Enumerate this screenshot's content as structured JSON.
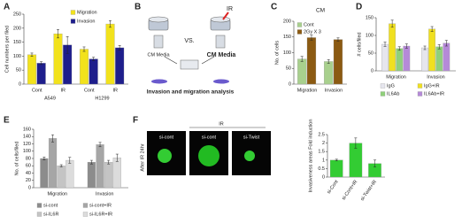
{
  "panel_labels": [
    "A",
    "B",
    "C",
    "D",
    "E",
    "F"
  ],
  "diagram": {
    "vs": "VS.",
    "ir": "IR",
    "left_media": "CM Media",
    "right_media": "CM Media",
    "caption": "Invasion and migration analysis"
  },
  "images": {
    "ir_header": "IR",
    "side_label": "After IR 24hr",
    "panels": [
      "si-cont",
      "si-cont",
      "si-Twist"
    ]
  },
  "chart_data": [
    {
      "type": "bar",
      "ylabel": "Cell numbers per filed",
      "categories": [
        "Cont",
        "IR",
        "Cont",
        "IR"
      ],
      "group_labels": [
        "A549",
        "H1299"
      ],
      "series": [
        {
          "name": "Migration",
          "color": "#f2e21c",
          "values": [
            105,
            180,
            125,
            215
          ],
          "errors": [
            6,
            15,
            8,
            12
          ]
        },
        {
          "name": "Invasion",
          "color": "#1e1e8c",
          "values": [
            75,
            140,
            90,
            130
          ],
          "errors": [
            5,
            30,
            6,
            8
          ]
        }
      ],
      "ylim": [
        0,
        250
      ],
      "yticks": [
        0,
        50,
        100,
        150,
        200,
        250
      ]
    },
    {
      "type": "bar",
      "title": "CM",
      "ylabel": "No. of cells",
      "categories": [
        "Migration",
        "Invasion"
      ],
      "series": [
        {
          "name": "Cont",
          "color": "#a8d08d",
          "values": [
            80,
            72
          ],
          "errors": [
            8,
            6
          ]
        },
        {
          "name": "2Gy X 3",
          "color": "#8b5a12",
          "values": [
            148,
            142
          ],
          "errors": [
            8,
            5
          ]
        }
      ],
      "ylim": [
        0,
        200
      ],
      "yticks": [
        0,
        50,
        100,
        150,
        200
      ]
    },
    {
      "type": "bar",
      "ylabel": "# cells/filed",
      "categories": [
        "Migration",
        "Invasion"
      ],
      "series": [
        {
          "name": "IgG",
          "color": "#e6e6ee",
          "values": [
            75,
            65
          ],
          "errors": [
            6,
            5
          ]
        },
        {
          "name": "IgG+IR",
          "color": "#f0e020",
          "values": [
            133,
            118
          ],
          "errors": [
            10,
            7
          ]
        },
        {
          "name": "IL6Ab",
          "color": "#8fd07a",
          "values": [
            63,
            68
          ],
          "errors": [
            5,
            6
          ]
        },
        {
          "name": "IL6Ab+IR",
          "color": "#b58ad8",
          "values": [
            70,
            78
          ],
          "errors": [
            6,
            8
          ]
        }
      ],
      "ylim": [
        0,
        150
      ],
      "yticks": [
        0,
        50,
        100,
        150
      ]
    },
    {
      "type": "bar",
      "ylabel": "No. of cells/filed",
      "categories": [
        "Migration",
        "Invasion"
      ],
      "series": [
        {
          "name": "si-cont",
          "color": "#8c8c8c",
          "values": [
            80,
            70
          ],
          "errors": [
            4,
            5
          ]
        },
        {
          "name": "si-cont+IR",
          "color": "#a6a6a6",
          "values": [
            135,
            118
          ],
          "errors": [
            10,
            6
          ]
        },
        {
          "name": "si-IL6R",
          "color": "#c4c4c4",
          "values": [
            60,
            70
          ],
          "errors": [
            3,
            5
          ]
        },
        {
          "name": "si-IL6R+IR",
          "color": "#dcdcdc",
          "values": [
            75,
            82
          ],
          "errors": [
            8,
            10
          ]
        }
      ],
      "ylim": [
        0,
        160
      ],
      "yticks": [
        0,
        20,
        40,
        60,
        80,
        100,
        120,
        140,
        160
      ]
    },
    {
      "type": "bar",
      "ylabel": "Invasiveness areas Fold induction",
      "categories": [
        "si-Cont",
        "si-Cont+IR",
        "si-Twist+IR"
      ],
      "color": "#33cc33",
      "values": [
        1,
        2,
        0.8
      ],
      "errors": [
        0.05,
        0.3,
        0.2
      ],
      "ylim": [
        0,
        2.5
      ],
      "yticks": [
        0,
        0.5,
        1,
        1.5,
        2,
        2.5
      ]
    }
  ]
}
